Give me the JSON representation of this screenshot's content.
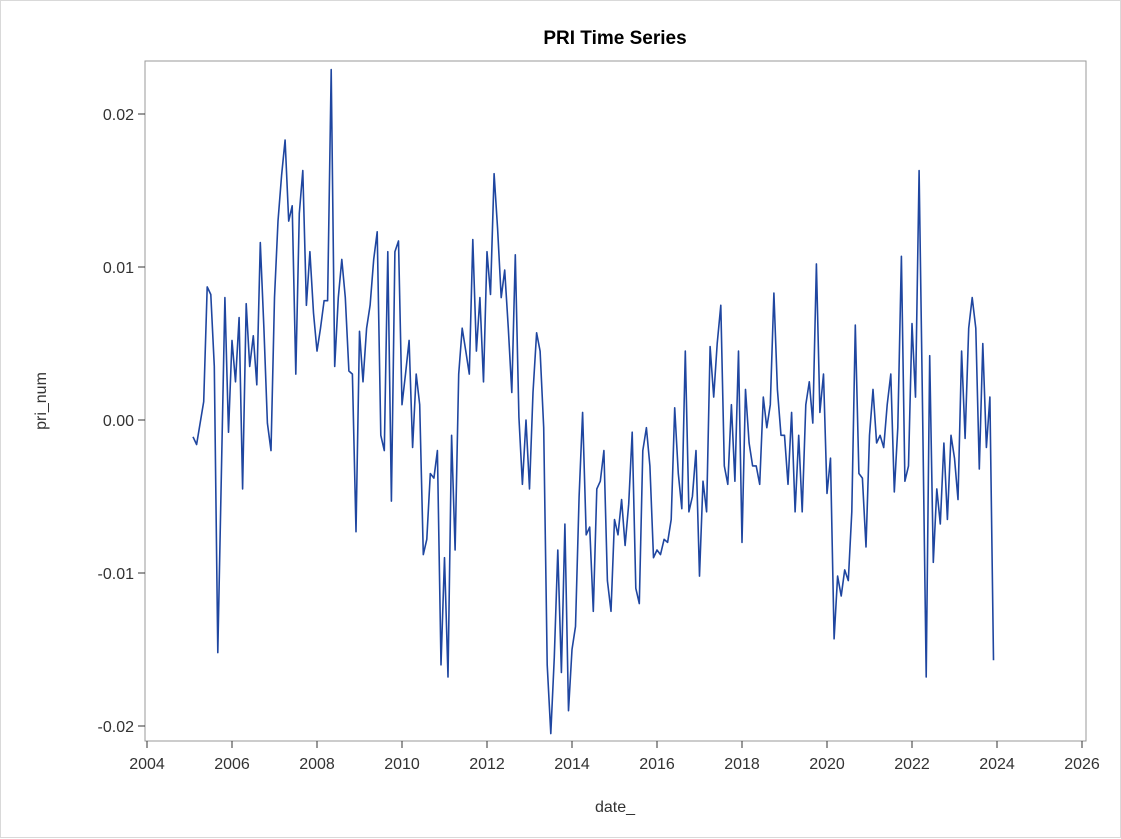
{
  "chart_data": {
    "type": "line",
    "title": "PRI Time Series",
    "xlabel": "date_",
    "ylabel": "pri_num",
    "xlim": [
      2004,
      2026
    ],
    "ylim": [
      -0.02,
      0.02
    ],
    "x_ticks": [
      "2004",
      "2006",
      "2008",
      "2010",
      "2012",
      "2014",
      "2016",
      "2018",
      "2020",
      "2022",
      "2024",
      "2026"
    ],
    "y_ticks": [
      "0.02",
      "0.01",
      "0.00",
      "-0.01",
      "-0.02"
    ],
    "grid": false,
    "line_color": "#1f46a0",
    "series": [
      {
        "x": [
          "2005-02",
          "2005-03",
          "2005-05",
          "2005-06",
          "2005-07",
          "2005-08",
          "2005-09",
          "2005-11",
          "2005-12",
          "2006-01",
          "2006-02",
          "2006-03",
          "2006-04",
          "2006-05",
          "2006-06",
          "2006-07",
          "2006-08",
          "2006-09",
          "2006-10",
          "2006-11",
          "2006-12",
          "2007-01",
          "2007-02",
          "2007-03",
          "2007-04",
          "2007-05",
          "2007-06",
          "2007-07",
          "2007-08",
          "2007-09",
          "2007-10",
          "2007-11",
          "2007-12",
          "2008-01",
          "2008-02",
          "2008-03",
          "2008-04",
          "2008-05",
          "2008-06",
          "2008-07",
          "2008-08",
          "2008-09",
          "2008-10",
          "2008-11",
          "2008-12",
          "2009-01",
          "2009-02",
          "2009-03",
          "2009-04",
          "2009-05",
          "2009-06",
          "2009-07",
          "2009-08",
          "2009-09",
          "2009-10",
          "2009-11",
          "2009-12",
          "2010-01",
          "2010-02",
          "2010-03",
          "2010-04",
          "2010-05",
          "2010-06",
          "2010-07",
          "2010-08",
          "2010-09",
          "2010-10",
          "2010-11",
          "2010-12",
          "2011-01",
          "2011-02",
          "2011-03",
          "2011-04",
          "2011-05",
          "2011-06",
          "2011-07",
          "2011-08",
          "2011-09",
          "2011-10",
          "2011-11",
          "2011-12",
          "2012-01",
          "2012-02",
          "2012-03",
          "2012-04",
          "2012-05",
          "2012-06",
          "2012-07",
          "2012-08",
          "2012-09",
          "2012-10",
          "2012-11",
          "2012-12",
          "2013-01",
          "2013-02",
          "2013-03",
          "2013-04",
          "2013-05",
          "2013-06",
          "2013-07",
          "2013-08",
          "2013-09",
          "2013-10",
          "2013-11",
          "2013-12",
          "2014-01",
          "2014-02",
          "2014-03",
          "2014-04",
          "2014-05",
          "2014-06",
          "2014-07",
          "2014-08",
          "2014-09",
          "2014-10",
          "2014-11",
          "2014-12",
          "2015-01",
          "2015-02",
          "2015-03",
          "2015-04",
          "2015-05",
          "2015-06",
          "2015-07",
          "2015-08",
          "2015-09",
          "2015-10",
          "2015-11",
          "2015-12",
          "2016-01",
          "2016-02",
          "2016-03",
          "2016-04",
          "2016-05",
          "2016-06",
          "2016-07",
          "2016-08",
          "2016-09",
          "2016-10",
          "2016-11",
          "2016-12",
          "2017-01",
          "2017-02",
          "2017-03",
          "2017-04",
          "2017-05",
          "2017-06",
          "2017-07",
          "2017-08",
          "2017-09",
          "2017-10",
          "2017-11",
          "2017-12",
          "2018-01",
          "2018-02",
          "2018-03",
          "2018-04",
          "2018-05",
          "2018-06",
          "2018-07",
          "2018-08",
          "2018-09",
          "2018-10",
          "2018-11",
          "2018-12",
          "2019-01",
          "2019-02",
          "2019-03",
          "2019-04",
          "2019-05",
          "2019-06",
          "2019-07",
          "2019-08",
          "2019-09",
          "2019-10",
          "2019-11",
          "2019-12",
          "2020-01",
          "2020-02",
          "2020-03",
          "2020-04",
          "2020-05",
          "2020-06",
          "2020-07",
          "2020-08",
          "2020-09",
          "2020-10",
          "2020-11",
          "2020-12",
          "2021-01",
          "2021-02",
          "2021-03",
          "2021-04",
          "2021-05",
          "2021-06",
          "2021-07",
          "2021-08",
          "2021-09",
          "2021-10",
          "2021-11",
          "2021-12",
          "2022-01",
          "2022-02",
          "2022-03",
          "2022-04",
          "2022-05",
          "2022-06",
          "2022-07",
          "2022-08",
          "2022-09",
          "2022-10",
          "2022-11",
          "2022-12",
          "2023-01",
          "2023-02",
          "2023-03",
          "2023-04",
          "2023-05",
          "2023-06",
          "2023-07",
          "2023-08",
          "2023-09",
          "2023-10",
          "2023-11",
          "2023-12"
        ],
        "y": [
          -0.0011,
          -0.0016,
          0.0012,
          0.0087,
          0.0082,
          0.0035,
          -0.0152,
          0.008,
          -0.0008,
          0.0052,
          0.0025,
          0.0067,
          -0.0045,
          0.0076,
          0.0035,
          0.0055,
          0.0023,
          0.0116,
          0.006,
          -0.0002,
          -0.002,
          0.008,
          0.013,
          0.016,
          0.0183,
          0.013,
          0.014,
          0.003,
          0.0135,
          0.0163,
          0.0075,
          0.011,
          0.007,
          0.0045,
          0.006,
          0.0078,
          0.0078,
          0.0229,
          0.0035,
          0.008,
          0.0105,
          0.008,
          0.0032,
          0.003,
          -0.0073,
          0.0058,
          0.0025,
          0.006,
          0.0075,
          0.0105,
          0.0123,
          -0.001,
          -0.002,
          0.011,
          -0.0053,
          0.011,
          0.0117,
          0.001,
          0.003,
          0.0052,
          -0.0018,
          0.003,
          0.001,
          -0.0088,
          -0.0078,
          -0.0035,
          -0.0038,
          -0.002,
          -0.016,
          -0.009,
          -0.0168,
          -0.001,
          -0.0085,
          0.003,
          0.006,
          0.0045,
          0.003,
          0.0118,
          0.0045,
          0.008,
          0.0025,
          0.011,
          0.0082,
          0.0161,
          0.0125,
          0.008,
          0.0098,
          0.006,
          0.0018,
          0.0108,
          0.0002,
          -0.0042,
          0.0,
          -0.0045,
          0.0018,
          0.0057,
          0.0045,
          -0.0005,
          -0.016,
          -0.0205,
          -0.0155,
          -0.0085,
          -0.0165,
          -0.0068,
          -0.019,
          -0.015,
          -0.0135,
          -0.005,
          0.0005,
          -0.0075,
          -0.007,
          -0.0125,
          -0.0045,
          -0.004,
          -0.002,
          -0.0105,
          -0.0125,
          -0.0065,
          -0.0075,
          -0.0052,
          -0.0082,
          -0.0055,
          -0.0008,
          -0.011,
          -0.012,
          -0.002,
          -0.0005,
          -0.003,
          -0.009,
          -0.0085,
          -0.0088,
          -0.0078,
          -0.008,
          -0.0065,
          0.0008,
          -0.0035,
          -0.0058,
          0.0045,
          -0.006,
          -0.005,
          -0.002,
          -0.0102,
          -0.004,
          -0.006,
          0.0048,
          0.0015,
          0.005,
          0.0075,
          -0.003,
          -0.0042,
          0.001,
          -0.004,
          0.0045,
          -0.008,
          0.002,
          -0.0015,
          -0.003,
          -0.003,
          -0.0042,
          0.0015,
          -0.0005,
          0.001,
          0.0083,
          0.002,
          -0.001,
          -0.001,
          -0.0042,
          0.0005,
          -0.006,
          -0.001,
          -0.006,
          0.001,
          0.0025,
          -0.0002,
          0.0102,
          0.0005,
          0.003,
          -0.0048,
          -0.0025,
          -0.0143,
          -0.0102,
          -0.0115,
          -0.0098,
          -0.0105,
          -0.006,
          0.0062,
          -0.0035,
          -0.0038,
          -0.0083,
          -0.001,
          0.002,
          -0.0015,
          -0.001,
          -0.0018,
          0.001,
          0.003,
          -0.0047,
          -0.0005,
          0.0107,
          -0.004,
          -0.003,
          0.0063,
          0.0015,
          0.0163,
          0.0005,
          -0.0168,
          0.0042,
          -0.0093,
          -0.0045,
          -0.0068,
          -0.0015,
          -0.0065,
          -0.001,
          -0.0025,
          -0.0052,
          0.0045,
          -0.0012,
          0.006,
          0.008,
          0.006,
          -0.0032,
          0.005,
          -0.0018,
          0.0015,
          -0.0157
        ]
      }
    ]
  }
}
